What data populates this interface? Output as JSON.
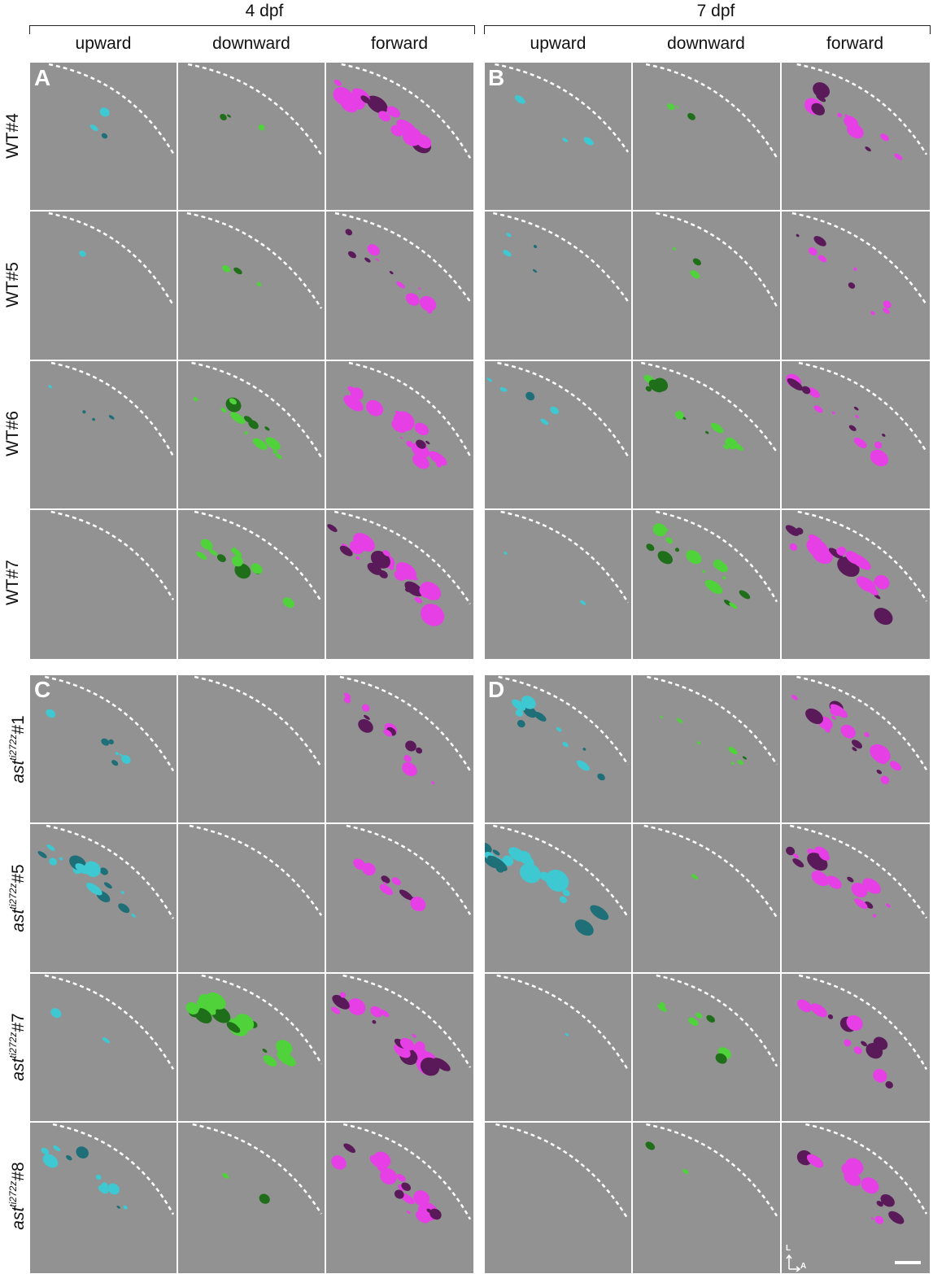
{
  "stages": [
    {
      "label": "4 dpf"
    },
    {
      "label": "7 dpf"
    }
  ],
  "columns": [
    "upward",
    "downward",
    "forward",
    "upward",
    "downward",
    "forward"
  ],
  "rows": [
    {
      "label": "WT#4"
    },
    {
      "label": "WT#5"
    },
    {
      "label": "WT#6"
    },
    {
      "label": "WT#7"
    },
    {
      "genotype": "ast",
      "allele": "ti272z",
      "num": "#1"
    },
    {
      "genotype": "ast",
      "allele": "ti272z",
      "num": "#5"
    },
    {
      "genotype": "ast",
      "allele": "ti272z",
      "num": "#7"
    },
    {
      "genotype": "ast",
      "allele": "ti272z",
      "num": "#8"
    }
  ],
  "panel_letters": [
    "A",
    "B",
    "C",
    "D"
  ],
  "orientation": {
    "vertical": "L",
    "horizontal": "A"
  },
  "colors": {
    "background": "#929292",
    "upward": "#3ec8d2",
    "upward_dark": "#1f6f78",
    "downward": "#4fd23a",
    "downward_dark": "#1f6e1a",
    "forward": "#e63fe6",
    "forward_dark": "#5a1a5a",
    "dashes": "#ffffff"
  }
}
